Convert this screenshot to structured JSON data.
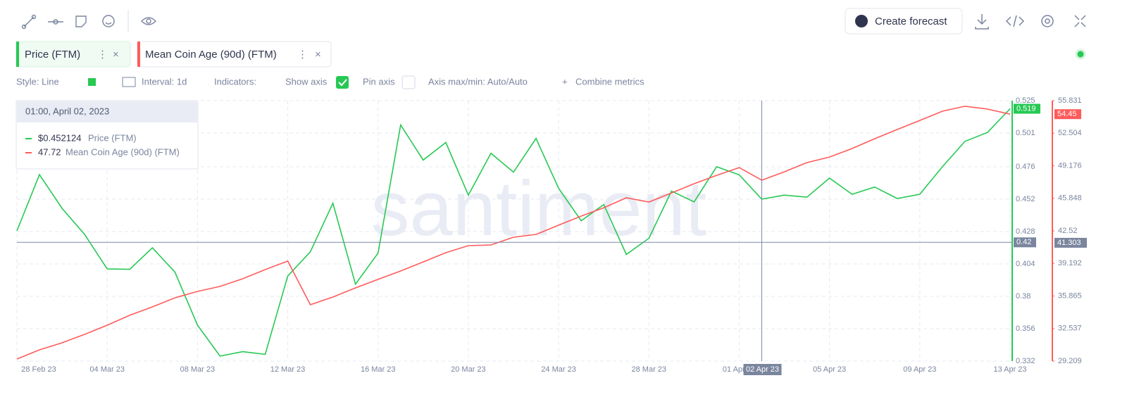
{
  "toolbar": {
    "forecast_button": "Create forecast"
  },
  "settings": {
    "style": "Style: Line",
    "interval": "Interval: 1d",
    "indicators": "Indicators:",
    "show_axis": "Show axis",
    "pin_axis": "Pin axis",
    "axis_minmax": "Axis max/min: Auto/Auto",
    "combine": "Combine metrics"
  },
  "watermark": "santiment",
  "tooltip": {
    "title": "01:00, April 02, 2023",
    "rows": [
      {
        "value": "$0.452124"
      },
      {
        "value": "47.72"
      }
    ]
  },
  "chart_data": {
    "type": "line",
    "categories": [
      "28 Feb 23",
      null,
      null,
      null,
      "04 Mar 23",
      null,
      null,
      null,
      "08 Mar 23",
      null,
      null,
      null,
      "12 Mar 23",
      null,
      null,
      null,
      "16 Mar 23",
      null,
      null,
      null,
      "20 Mar 23",
      null,
      null,
      null,
      "24 Mar 23",
      null,
      null,
      null,
      "28 Mar 23",
      null,
      null,
      null,
      "01 Apr 23",
      null,
      null,
      null,
      "05 Apr 23",
      null,
      null,
      null,
      "09 Apr 23",
      null,
      null,
      null,
      "13 Apr 23"
    ],
    "series": [
      {
        "name": "Price (FTM)",
        "color": "#26c953",
        "values": [
          0.4285,
          0.4702,
          0.4452,
          0.4259,
          0.4003,
          0.4,
          0.416,
          0.398,
          0.3586,
          0.3357,
          0.339,
          0.337,
          0.395,
          0.413,
          0.449,
          0.389,
          0.412,
          0.507,
          0.481,
          0.494,
          0.455,
          0.486,
          0.472,
          0.497,
          0.46,
          0.436,
          0.448,
          0.411,
          0.423,
          0.458,
          0.45,
          0.476,
          0.47,
          0.452,
          0.455,
          0.4535,
          0.4676,
          0.4556,
          0.461,
          0.4525,
          0.4556,
          0.476,
          0.4948,
          0.5015,
          0.519
        ]
      },
      {
        "name": "Mean Coin Age (90d) (FTM)",
        "color": "#ff5b5b",
        "axis": "y2",
        "values": [
          29.42,
          30.36,
          31.08,
          31.94,
          32.88,
          33.89,
          34.75,
          35.68,
          36.33,
          36.84,
          37.63,
          38.56,
          39.43,
          34.97,
          35.76,
          36.69,
          37.56,
          38.42,
          39.35,
          40.29,
          41.01,
          41.08,
          41.87,
          42.16,
          43.1,
          44.03,
          44.89,
          45.9,
          45.47,
          46.4,
          47.34,
          48.2,
          48.99,
          47.7,
          48.56,
          49.5,
          50.07,
          50.94,
          51.94,
          52.88,
          53.81,
          54.75,
          55.26,
          54.97,
          54.45
        ]
      }
    ],
    "ylim": [
      0.332,
      0.525
    ],
    "yticks": [
      0.332,
      0.356,
      0.38,
      0.404,
      0.428,
      0.452,
      0.476,
      0.501,
      0.525
    ],
    "y2lim": [
      29.209,
      55.831
    ],
    "y2ticks": [
      29.209,
      32.537,
      35.865,
      39.192,
      42.52,
      45.848,
      49.176,
      52.504,
      55.831
    ],
    "grid": true,
    "crosshair": {
      "x_label": "02 Apr 23",
      "y": 0.42,
      "y2": 41.303
    }
  }
}
